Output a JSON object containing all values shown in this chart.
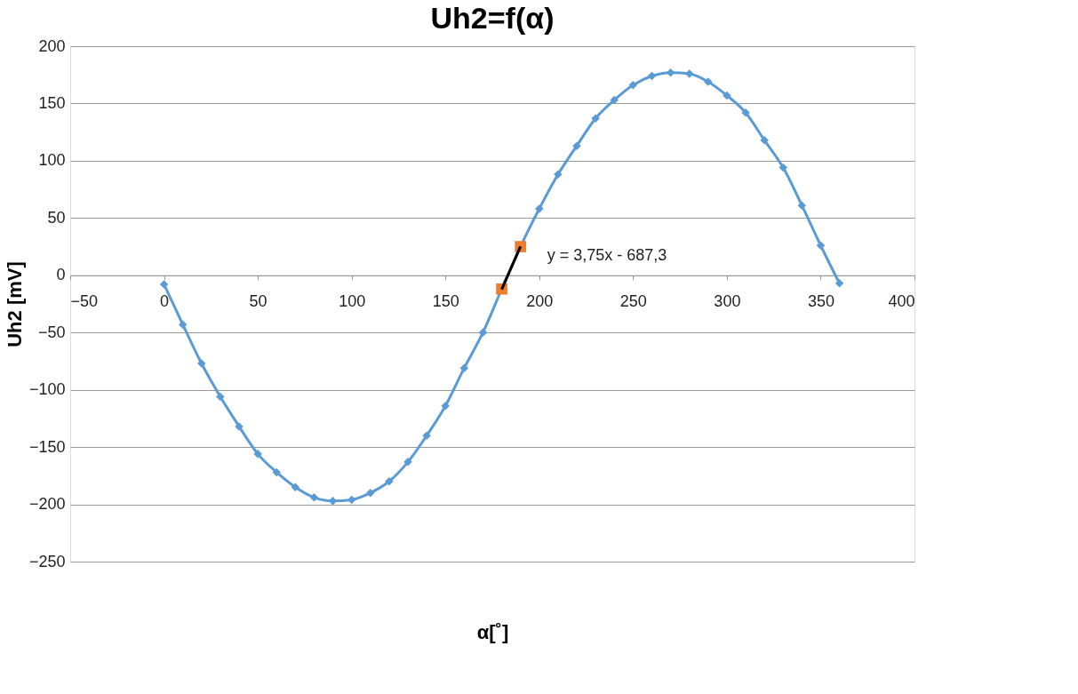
{
  "chart_data": {
    "type": "line",
    "title": "Uh2=f(α)",
    "xlabel": "α[˚]",
    "ylabel": "Uh2 [mV]",
    "xlim": [
      -50,
      400
    ],
    "xticks": [
      -50,
      0,
      50,
      100,
      150,
      200,
      250,
      300,
      350,
      400
    ],
    "ylim": [
      -250,
      200
    ],
    "yticks": [
      -250,
      -200,
      -150,
      -100,
      -50,
      0,
      50,
      100,
      150,
      200
    ],
    "grid": "y",
    "marker": "diamond",
    "line_style": "solid",
    "series": [
      {
        "color": "#5b9bd5",
        "x": [
          0,
          10,
          20,
          30,
          40,
          50,
          60,
          70,
          80,
          90,
          100,
          110,
          120,
          130,
          140,
          150,
          160,
          170,
          180,
          190,
          200,
          210,
          220,
          230,
          240,
          250,
          260,
          270,
          280,
          290,
          300,
          310,
          320,
          330,
          340,
          350,
          360
        ],
        "values": [
          -8,
          -43,
          -77,
          -106,
          -132,
          -156,
          -172,
          -185,
          -194,
          -197,
          -196,
          -190,
          -180,
          -163,
          -140,
          -114,
          -81,
          -50,
          -12,
          25,
          58,
          88,
          113,
          137,
          153,
          166,
          174,
          177,
          176,
          169,
          157,
          142,
          118,
          94,
          61,
          26,
          -7
        ]
      },
      {
        "type": "scatter",
        "color": "#ed7d31",
        "marker": "square",
        "x": [
          180,
          190
        ],
        "values": [
          -12,
          25
        ]
      },
      {
        "type": "line",
        "color": "#000000",
        "marker": "none",
        "x": [
          180,
          190
        ],
        "values": [
          -12.3,
          25.2
        ]
      }
    ],
    "annotations": [
      {
        "text": "y = 3,75x - 687,3",
        "x": 190,
        "y": 25
      }
    ]
  }
}
